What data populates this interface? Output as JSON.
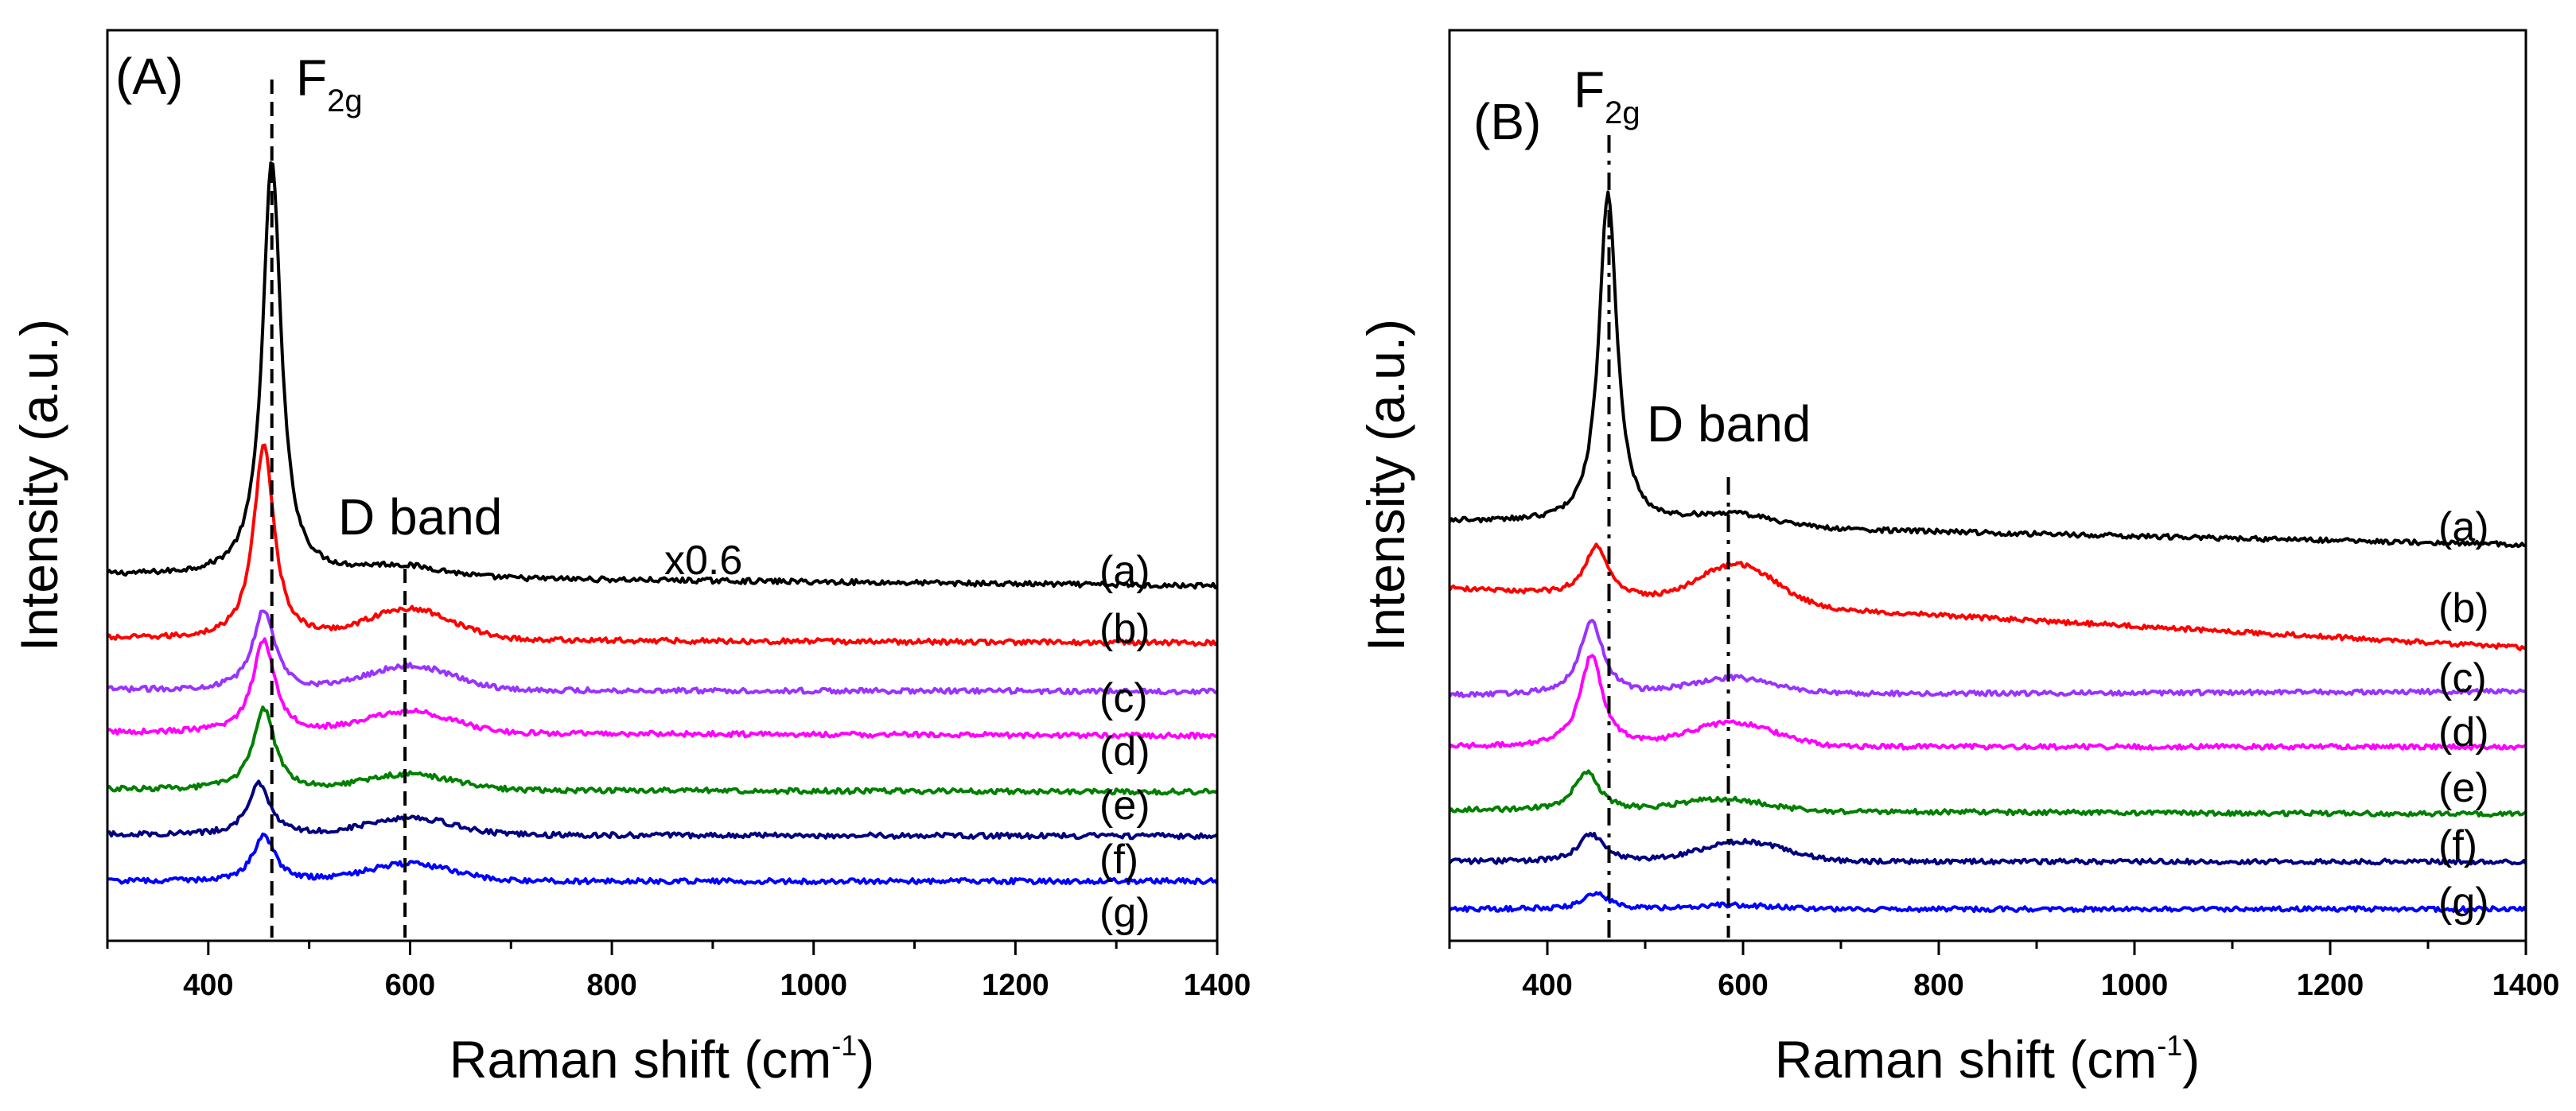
{
  "chart_data": [
    {
      "type": "line",
      "panel": "(A)",
      "xlabel": {
        "main": "Raman shift (cm",
        "sup": "-1",
        "close": ")"
      },
      "ylabel": "Intensity (a.u.)",
      "xlim": [
        300,
        1400
      ],
      "xticks": [
        400,
        600,
        800,
        1000,
        1200,
        1400
      ],
      "xtick_labels": [
        "400",
        "600",
        "800",
        "1000",
        "1200",
        "1400"
      ],
      "y_axis": "arbitrary units, stacked offsets, no tick labels",
      "annotations": {
        "f2g": {
          "main": "F",
          "sub": "2g"
        },
        "dband": "D band",
        "scale": "x0.6"
      },
      "reference_lines": [
        {
          "name": "F2g",
          "x": 463,
          "style": "dashed"
        },
        {
          "name": "D band",
          "x": 595,
          "style": "dashed"
        }
      ],
      "series": [
        {
          "name": "(a)",
          "color": "#000000",
          "baseline": 5.6,
          "end": 5.47,
          "peak_x": 463,
          "peak_height": 4.9,
          "peak_width": 11,
          "dband_height": 0.12,
          "dband_center": 590,
          "dband_width": 60
        },
        {
          "name": "(b)",
          "color": "#ff0000",
          "baseline": 4.85,
          "end": 4.8,
          "peak_x": 455,
          "peak_height": 2.3,
          "peak_width": 12,
          "dband_height": 0.35,
          "dband_center": 600,
          "dband_width": 60
        },
        {
          "name": "(c)",
          "color": "#9933ff",
          "baseline": 4.25,
          "end": 4.23,
          "peak_x": 455,
          "peak_height": 0.95,
          "peak_width": 13,
          "dband_height": 0.28,
          "dband_center": 600,
          "dband_width": 60
        },
        {
          "name": "(d)",
          "color": "#ff00ff",
          "baseline": 3.75,
          "end": 3.71,
          "peak_x": 455,
          "peak_height": 1.1,
          "peak_width": 13,
          "dband_height": 0.25,
          "dband_center": 600,
          "dband_width": 60
        },
        {
          "name": "(e)",
          "color": "#008000",
          "baseline": 3.08,
          "end": 3.05,
          "peak_x": 455,
          "peak_height": 0.95,
          "peak_width": 13,
          "dband_height": 0.18,
          "dband_center": 600,
          "dband_width": 60
        },
        {
          "name": "(f)",
          "color": "#000080",
          "baseline": 2.55,
          "end": 2.53,
          "peak_x": 450,
          "peak_height": 0.6,
          "peak_width": 13,
          "dband_height": 0.2,
          "dband_center": 600,
          "dband_width": 60
        },
        {
          "name": "(g)",
          "color": "#0000ff",
          "baseline": 2.0,
          "end": 2.0,
          "peak_x": 455,
          "peak_height": 0.55,
          "peak_width": 13,
          "dband_height": 0.2,
          "dband_center": 600,
          "dband_width": 60
        }
      ]
    },
    {
      "type": "line",
      "panel": "(B)",
      "xlabel": {
        "main": "Raman shift (cm",
        "sup": "-1",
        "close": ")"
      },
      "ylabel": "Intensity (a.u.)",
      "xlim": [
        300,
        1400
      ],
      "xticks": [
        400,
        600,
        800,
        1000,
        1200,
        1400
      ],
      "xtick_labels": [
        "400",
        "600",
        "800",
        "1000",
        "1200",
        "1400"
      ],
      "y_axis": "arbitrary units, stacked offsets, no tick labels",
      "annotations": {
        "f2g": {
          "main": "F",
          "sub": "2g"
        },
        "dband": "D band"
      },
      "reference_lines": [
        {
          "name": "F2g",
          "x": 463,
          "style": "dashdot"
        },
        {
          "name": "D band",
          "x": 585,
          "style": "dashdot"
        }
      ],
      "series": [
        {
          "name": "(a)",
          "color": "#000000",
          "baseline": 6.2,
          "end": 5.9,
          "peak_x": 462,
          "peak_height": 4.2,
          "peak_width": 11,
          "dband_height": 0.15,
          "dband_center": 590,
          "dband_width": 60
        },
        {
          "name": "(b)",
          "color": "#ff0000",
          "baseline": 5.35,
          "end": 4.6,
          "peak_x": 450,
          "peak_height": 0.65,
          "peak_width": 14,
          "dband_height": 0.5,
          "dband_center": 595,
          "dband_width": 55
        },
        {
          "name": "(c)",
          "color": "#9933ff",
          "baseline": 4.0,
          "end": 4.05,
          "peak_x": 445,
          "peak_height": 0.95,
          "peak_width": 14,
          "dband_height": 0.2,
          "dband_center": 590,
          "dband_width": 60
        },
        {
          "name": "(d)",
          "color": "#ff00ff",
          "baseline": 3.35,
          "end": 3.35,
          "peak_x": 445,
          "peak_height": 1.15,
          "peak_width": 14,
          "dband_height": 0.3,
          "dband_center": 590,
          "dband_width": 60
        },
        {
          "name": "(e)",
          "color": "#008000",
          "baseline": 2.55,
          "end": 2.5,
          "peak_x": 440,
          "peak_height": 0.5,
          "peak_width": 15,
          "dband_height": 0.15,
          "dband_center": 580,
          "dband_width": 60
        },
        {
          "name": "(f)",
          "color": "#000080",
          "baseline": 1.9,
          "end": 1.9,
          "peak_x": 445,
          "peak_height": 0.35,
          "peak_width": 15,
          "dband_height": 0.25,
          "dband_center": 600,
          "dband_width": 60
        },
        {
          "name": "(g)",
          "color": "#0000ff",
          "baseline": 1.3,
          "end": 1.3,
          "peak_x": 450,
          "peak_height": 0.2,
          "peak_width": 15,
          "dband_height": 0.05,
          "dband_center": 590,
          "dband_width": 60
        }
      ]
    }
  ]
}
